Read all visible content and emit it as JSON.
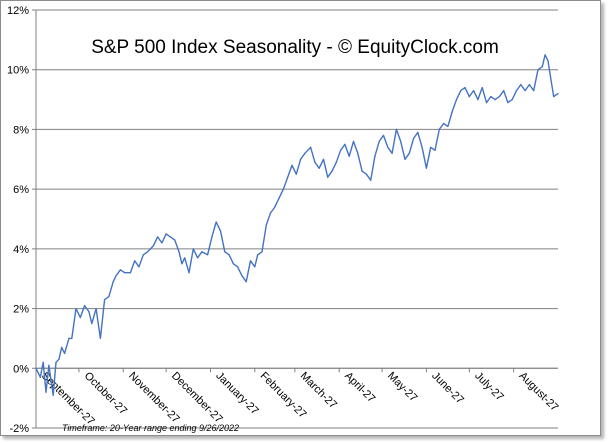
{
  "chart_data": {
    "type": "line",
    "title": "S&P 500 Index Seasonality - © EquityClock.com",
    "footnote": "Timeframe: 20-Year range ending 9/26/2022",
    "xlabel": "",
    "ylabel": "",
    "ylim": [
      -2,
      12
    ],
    "y_ticks": [
      {
        "value": -2,
        "label": "-2%"
      },
      {
        "value": 0,
        "label": "0%"
      },
      {
        "value": 2,
        "label": "2%"
      },
      {
        "value": 4,
        "label": "4%"
      },
      {
        "value": 6,
        "label": "6%"
      },
      {
        "value": 8,
        "label": "8%"
      },
      {
        "value": 10,
        "label": "10%"
      },
      {
        "value": 12,
        "label": "12%"
      }
    ],
    "xlim": [
      0,
      365
    ],
    "x_ticks": [
      {
        "value": 0,
        "label": "September-27"
      },
      {
        "value": 30,
        "label": "October-27"
      },
      {
        "value": 61,
        "label": "November-27"
      },
      {
        "value": 91,
        "label": "December-27"
      },
      {
        "value": 122,
        "label": "January-27"
      },
      {
        "value": 153,
        "label": "February-27"
      },
      {
        "value": 181,
        "label": "March-27"
      },
      {
        "value": 212,
        "label": "April-27"
      },
      {
        "value": 242,
        "label": "May-27"
      },
      {
        "value": 273,
        "label": "June-27"
      },
      {
        "value": 303,
        "label": "July-27"
      },
      {
        "value": 334,
        "label": "August-27"
      }
    ],
    "grid": true,
    "series": [
      {
        "name": "S&P 500 Index Seasonality",
        "color": "#4472c4",
        "x": [
          0,
          3,
          5,
          7,
          9,
          12,
          14,
          16,
          18,
          20,
          23,
          25,
          28,
          31,
          34,
          37,
          39,
          42,
          45,
          48,
          51,
          54,
          56,
          59,
          62,
          66,
          69,
          72,
          75,
          78,
          82,
          85,
          88,
          91,
          94,
          97,
          100,
          102,
          104,
          107,
          110,
          113,
          116,
          120,
          123,
          126,
          129,
          132,
          135,
          138,
          141,
          144,
          147,
          150,
          153,
          155,
          158,
          161,
          164,
          167,
          170,
          173,
          176,
          179,
          182,
          185,
          188,
          192,
          195,
          198,
          201,
          204,
          207,
          210,
          213,
          216,
          219,
          222,
          225,
          228,
          231,
          234,
          237,
          240,
          243,
          246,
          249,
          252,
          255,
          258,
          261,
          264,
          267,
          270,
          273,
          276,
          279,
          282,
          285,
          288,
          291,
          294,
          297,
          300,
          303,
          306,
          309,
          312,
          315,
          318,
          321,
          324,
          327,
          330,
          333,
          336,
          339,
          342,
          345,
          348,
          351,
          354,
          356,
          358,
          360,
          362,
          365
        ],
        "values": [
          0.0,
          -0.3,
          0.2,
          -0.8,
          0.1,
          -0.9,
          0.2,
          0.3,
          0.7,
          0.5,
          1.0,
          1.0,
          2.0,
          1.7,
          2.1,
          1.9,
          1.5,
          2.0,
          1.0,
          2.3,
          2.4,
          2.9,
          3.1,
          3.3,
          3.2,
          3.2,
          3.6,
          3.4,
          3.8,
          3.9,
          4.1,
          4.4,
          4.2,
          4.5,
          4.4,
          4.3,
          3.9,
          3.5,
          3.7,
          3.2,
          4.0,
          3.7,
          3.9,
          3.8,
          4.4,
          4.9,
          4.6,
          3.9,
          3.8,
          3.5,
          3.4,
          3.1,
          2.9,
          3.6,
          3.4,
          3.8,
          3.9,
          4.8,
          5.2,
          5.4,
          5.7,
          6.0,
          6.4,
          6.8,
          6.5,
          7.0,
          7.2,
          7.4,
          6.9,
          6.7,
          7.0,
          6.4,
          6.6,
          6.9,
          7.3,
          7.5,
          7.1,
          7.6,
          7.2,
          6.6,
          6.5,
          6.3,
          7.1,
          7.6,
          7.8,
          7.4,
          7.2,
          8.0,
          7.6,
          7.0,
          7.2,
          7.7,
          7.9,
          7.4,
          6.7,
          7.4,
          7.3,
          8.0,
          8.2,
          8.1,
          8.6,
          9.0,
          9.3,
          9.4,
          9.1,
          9.3,
          9.0,
          9.4,
          8.9,
          9.1,
          9.0,
          9.1,
          9.3,
          8.9,
          9.0,
          9.3,
          9.5,
          9.3,
          9.5,
          9.3,
          10.0,
          10.1,
          10.5,
          10.3,
          9.7,
          9.1,
          9.2
        ]
      }
    ]
  }
}
